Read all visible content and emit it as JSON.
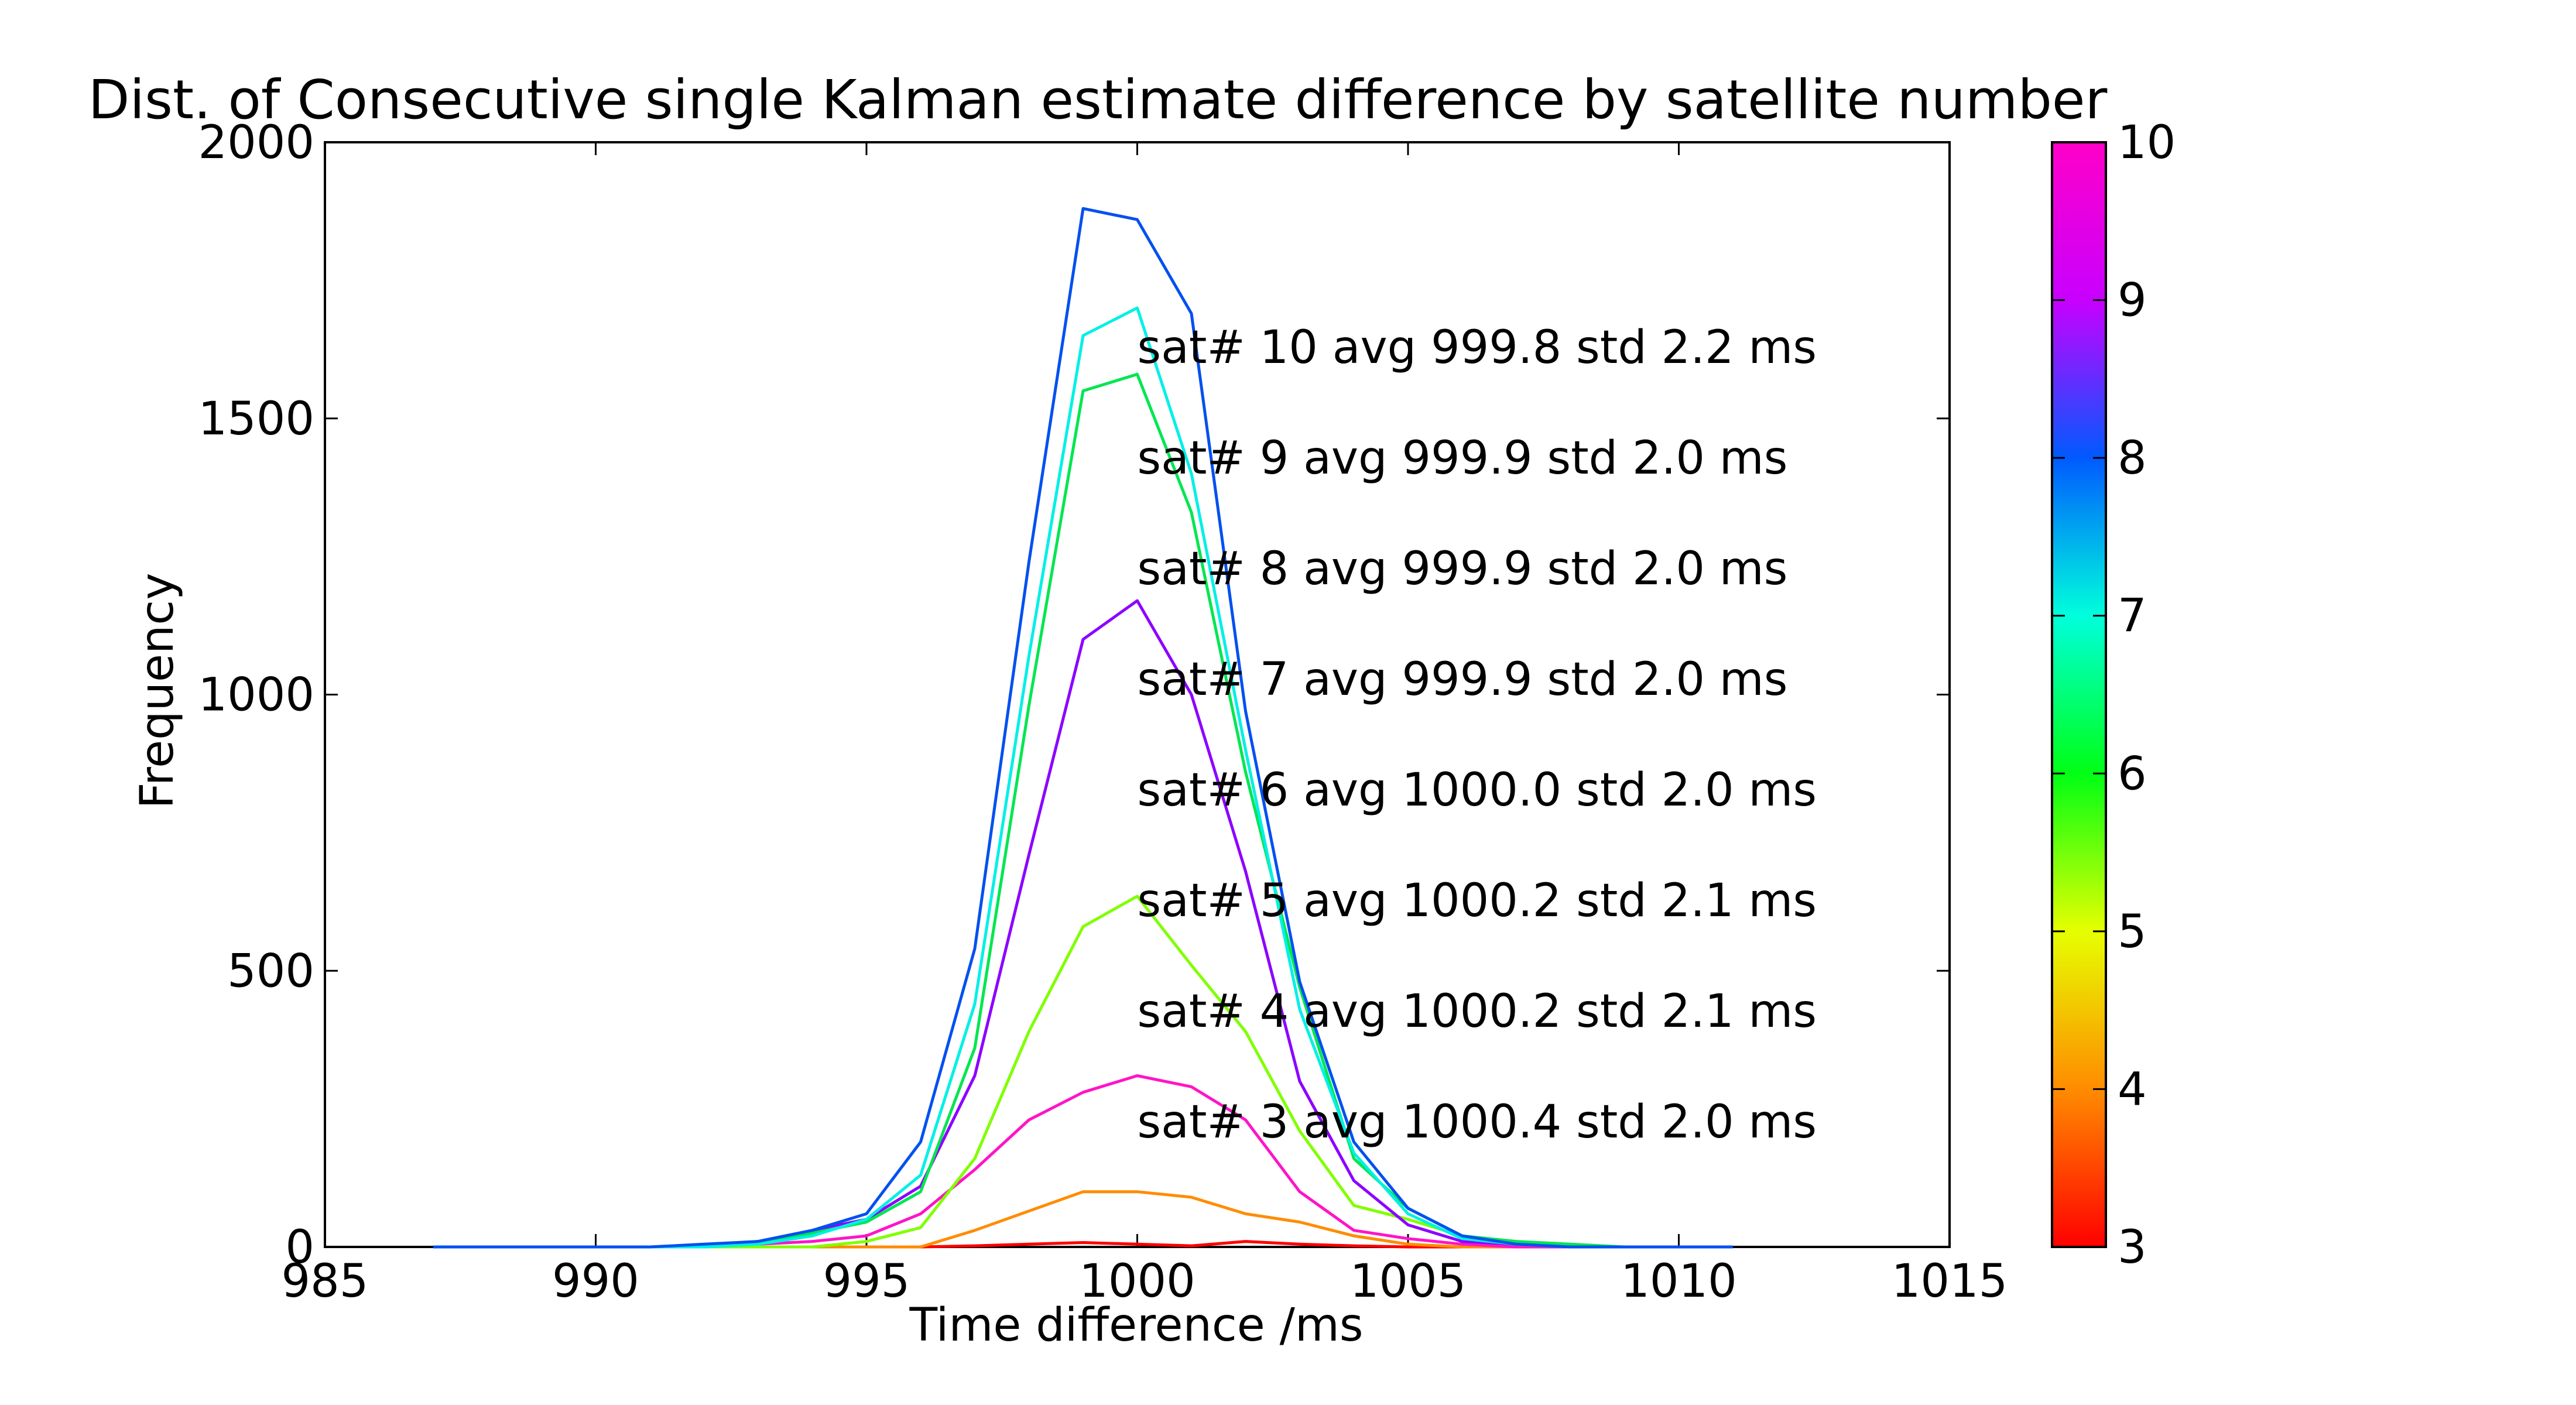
{
  "chart_data": {
    "type": "line",
    "title": "Dist. of Consecutive single Kalman estimate difference by satellite number",
    "xlabel": "Time difference /ms",
    "ylabel": "Frequency",
    "xlim": [
      985,
      1015
    ],
    "ylim": [
      0,
      2000
    ],
    "xticks": [
      985,
      990,
      995,
      1000,
      1005,
      1010,
      1015
    ],
    "yticks": [
      0,
      500,
      1000,
      1500,
      2000
    ],
    "grid": false,
    "x": [
      987,
      988,
      989,
      990,
      991,
      992,
      993,
      994,
      995,
      996,
      997,
      998,
      999,
      1000,
      1001,
      1002,
      1003,
      1004,
      1005,
      1006,
      1007,
      1008,
      1009,
      1010,
      1011
    ],
    "series": [
      {
        "sat": 3,
        "color": "#ff0000",
        "values": [
          0,
          0,
          0,
          0,
          0,
          0,
          0,
          0,
          0,
          0,
          2,
          5,
          8,
          5,
          2,
          10,
          5,
          2,
          0,
          0,
          0,
          0,
          0,
          0,
          0
        ]
      },
      {
        "sat": 4,
        "color": "#ff8c00",
        "values": [
          0,
          0,
          0,
          0,
          0,
          0,
          0,
          0,
          0,
          0,
          30,
          65,
          100,
          100,
          90,
          60,
          45,
          20,
          5,
          0,
          0,
          0,
          0,
          0,
          0
        ]
      },
      {
        "sat": 5,
        "color": "#ff14c8",
        "values": [
          0,
          0,
          0,
          0,
          0,
          0,
          5,
          10,
          20,
          60,
          140,
          230,
          280,
          310,
          290,
          230,
          100,
          30,
          15,
          5,
          0,
          0,
          0,
          0,
          0
        ]
      },
      {
        "sat": 6,
        "color": "#80ff00",
        "values": [
          0,
          0,
          0,
          0,
          0,
          0,
          0,
          0,
          10,
          35,
          160,
          390,
          580,
          635,
          510,
          390,
          210,
          75,
          50,
          20,
          5,
          0,
          0,
          0,
          0
        ]
      },
      {
        "sat": 7,
        "color": "#8c00ff",
        "values": [
          0,
          0,
          0,
          0,
          0,
          0,
          10,
          30,
          50,
          110,
          310,
          710,
          1100,
          1170,
          1000,
          680,
          300,
          120,
          40,
          10,
          5,
          0,
          0,
          0,
          0
        ]
      },
      {
        "sat": 8,
        "color": "#00e650",
        "values": [
          0,
          0,
          0,
          0,
          0,
          0,
          10,
          25,
          45,
          100,
          360,
          980,
          1550,
          1580,
          1330,
          860,
          470,
          160,
          70,
          20,
          10,
          5,
          0,
          0,
          0
        ]
      },
      {
        "sat": 9,
        "color": "#00f0e6",
        "values": [
          0,
          0,
          0,
          0,
          0,
          0,
          5,
          20,
          50,
          130,
          440,
          1070,
          1650,
          1700,
          1400,
          900,
          430,
          170,
          60,
          15,
          5,
          0,
          0,
          0,
          0
        ]
      },
      {
        "sat": 10,
        "color": "#0050f0",
        "values": [
          0,
          0,
          0,
          0,
          0,
          5,
          10,
          30,
          60,
          190,
          540,
          1240,
          1880,
          1860,
          1690,
          970,
          480,
          190,
          70,
          20,
          5,
          0,
          0,
          0,
          0
        ]
      }
    ],
    "annotations": [
      "sat# 10 avg 999.8 std 2.2 ms",
      "sat# 9 avg 999.9 std 2.0 ms",
      "sat# 8 avg 999.9 std 2.0 ms",
      "sat# 7 avg 999.9 std 2.0 ms",
      "sat# 6 avg 1000.0 std 2.0 ms",
      "sat# 5 avg 1000.2 std 2.1 ms",
      "sat# 4 avg 1000.2 std 2.1 ms",
      "sat# 3 avg 1000.4 std 2.0 ms"
    ],
    "colorbar": {
      "range": [
        3,
        10
      ],
      "ticks": [
        3,
        4,
        5,
        6,
        7,
        8,
        9,
        10
      ],
      "colormap": "gist_rainbow",
      "stops": [
        "#ff0000",
        "#ff8c00",
        "#e6ff00",
        "#00ff14",
        "#00ffdc",
        "#005aff",
        "#c800ff",
        "#ff00c8"
      ]
    }
  }
}
